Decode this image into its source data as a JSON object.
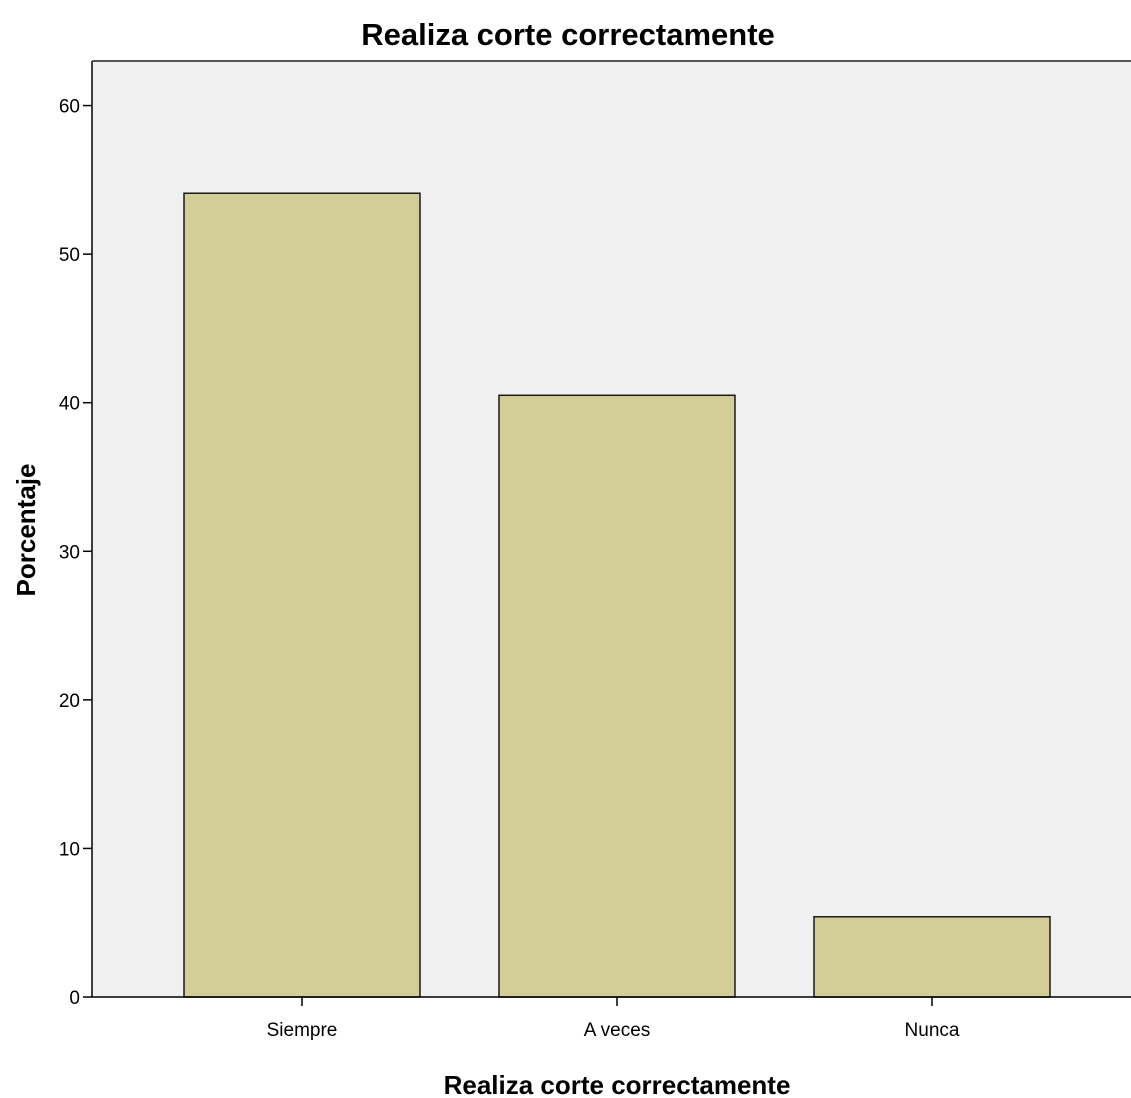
{
  "chart_data": {
    "type": "bar",
    "title": "Realiza corte correctamente",
    "xlabel": "Realiza corte correctamente",
    "ylabel": "Porcentaje",
    "categories": [
      "Siempre",
      "A veces",
      "Nunca"
    ],
    "values": [
      54.1,
      40.5,
      5.4
    ],
    "ylim": [
      0,
      63
    ],
    "yticks": [
      "0",
      "10",
      "20",
      "30",
      "40",
      "50",
      "60"
    ],
    "grid": false,
    "legend": "none",
    "colors": {
      "bar_fill": "#d3cd98",
      "bar_stroke": "#1a1a1a",
      "plot_background": "#f0f0f0",
      "axis": "#000000"
    }
  }
}
